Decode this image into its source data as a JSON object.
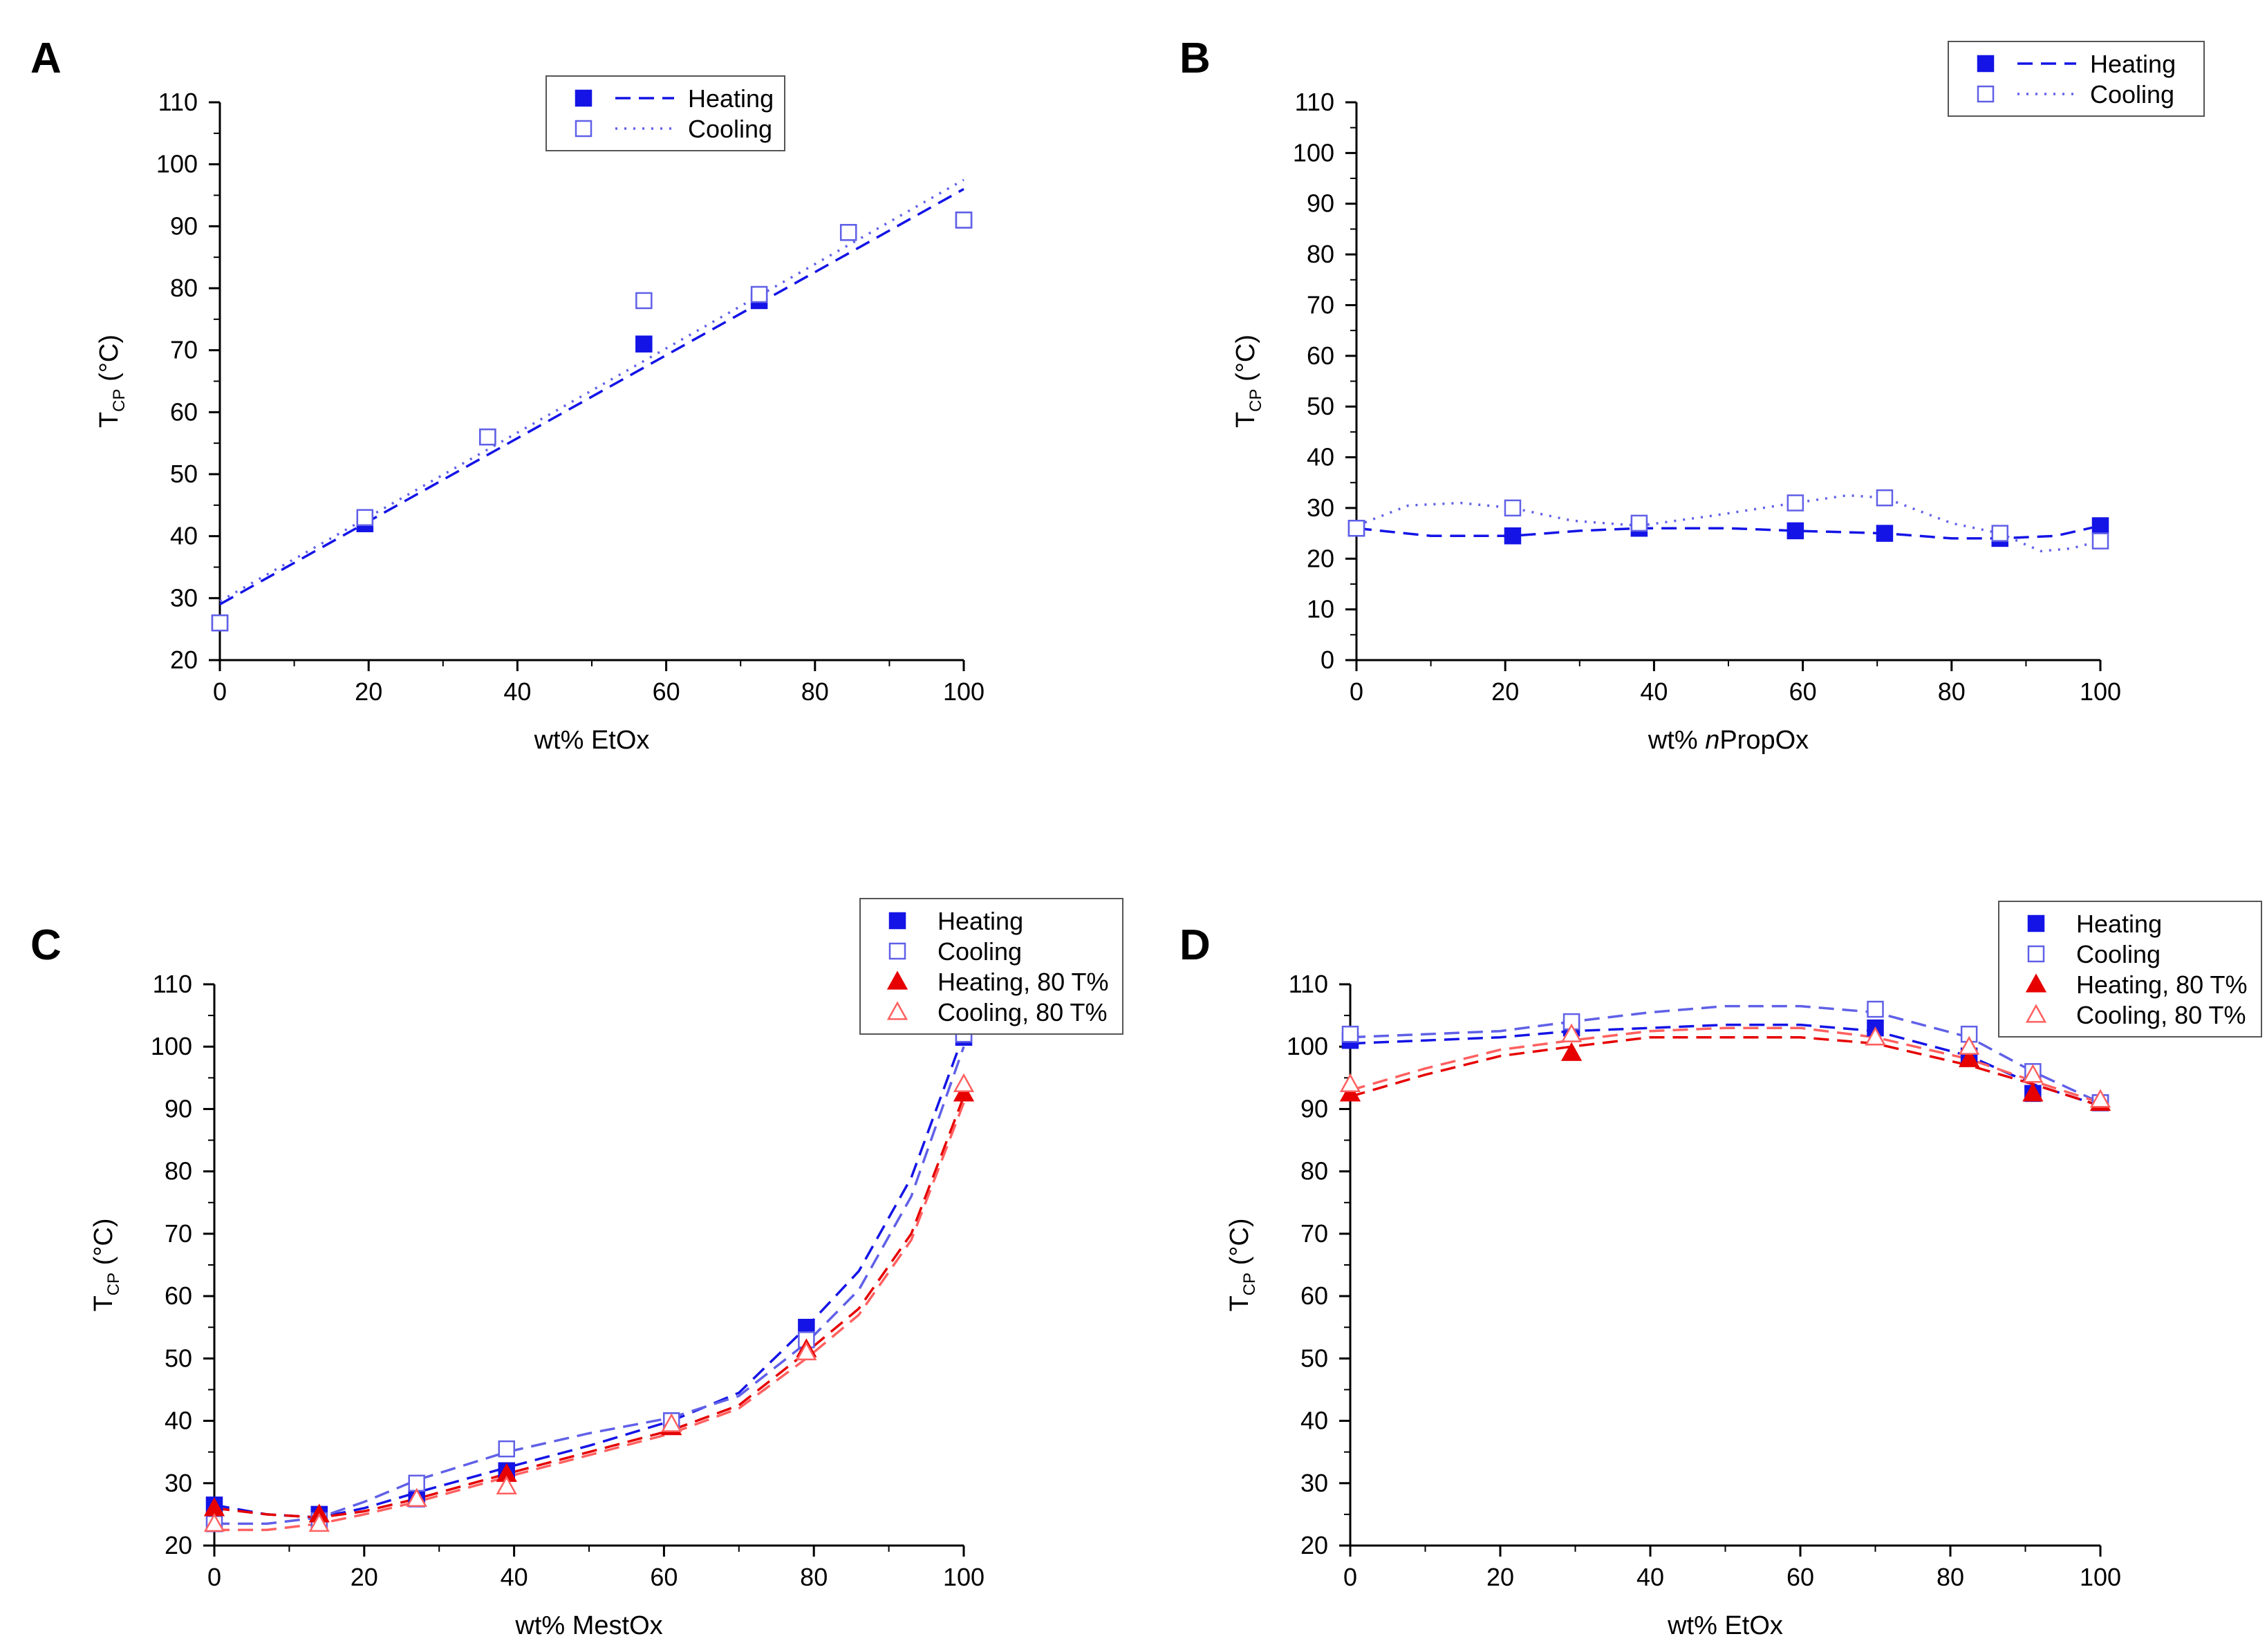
{
  "colors": {
    "heating": "#1414e6",
    "cooling": "#6060e8",
    "heating80": "#e60000",
    "cooling80": "#ff6060",
    "axis": "#000000"
  },
  "chart_data": [
    {
      "panel": "A",
      "type": "scatter",
      "xlabel_parts": [
        {
          "text": "wt% EtOx",
          "italic": false
        }
      ],
      "ylabel_main": "T",
      "ylabel_sub": "CP",
      "ylabel_unit": " (°C)",
      "xlim": [
        0,
        100
      ],
      "ylim": [
        20,
        110
      ],
      "xticks": [
        0,
        20,
        40,
        60,
        80,
        100
      ],
      "yticks": [
        20,
        30,
        40,
        50,
        60,
        70,
        80,
        90,
        100,
        110
      ],
      "legend_position": "top-center",
      "series": [
        {
          "name": "Heating",
          "color": "heating",
          "marker": "square-filled",
          "line": "dashed",
          "points": [
            [
              0,
              26
            ],
            [
              19.5,
              42
            ],
            [
              36,
              56
            ],
            [
              57,
              71
            ],
            [
              72.5,
              78
            ],
            [
              84.5,
              89
            ],
            [
              100,
              91
            ]
          ],
          "fit": [
            [
              0,
              29
            ],
            [
              100,
              96
            ]
          ]
        },
        {
          "name": "Cooling",
          "color": "cooling",
          "marker": "square-open",
          "line": "dotted",
          "points": [
            [
              0,
              26
            ],
            [
              19.5,
              43
            ],
            [
              36,
              56
            ],
            [
              57,
              78
            ],
            [
              72.5,
              79
            ],
            [
              84.5,
              89
            ],
            [
              100,
              91
            ]
          ],
          "fit": [
            [
              0,
              29.5
            ],
            [
              100,
              97.5
            ]
          ]
        }
      ]
    },
    {
      "panel": "B",
      "type": "scatter",
      "xlabel_parts": [
        {
          "text": "wt% ",
          "italic": false
        },
        {
          "text": "n",
          "italic": true
        },
        {
          "text": "PropOx",
          "italic": false
        }
      ],
      "ylabel_main": "T",
      "ylabel_sub": "CP",
      "ylabel_unit": " (°C)",
      "xlim": [
        0,
        100
      ],
      "ylim": [
        0,
        110
      ],
      "xticks": [
        0,
        20,
        40,
        60,
        80,
        100
      ],
      "yticks": [
        0,
        10,
        20,
        30,
        40,
        50,
        60,
        70,
        80,
        90,
        100,
        110
      ],
      "legend_position": "top-right",
      "series": [
        {
          "name": "Heating",
          "color": "heating",
          "marker": "square-filled",
          "line": "dashed",
          "points": [
            [
              0,
              26
            ],
            [
              21,
              24.5
            ],
            [
              38,
              26
            ],
            [
              59,
              25.5
            ],
            [
              71,
              25
            ],
            [
              86.5,
              24
            ],
            [
              100,
              26.5
            ]
          ],
          "fit": [
            [
              0,
              26
            ],
            [
              10,
              24.5
            ],
            [
              21,
              24.5
            ],
            [
              30,
              25.5
            ],
            [
              38,
              26
            ],
            [
              50,
              26
            ],
            [
              59,
              25.5
            ],
            [
              71,
              25
            ],
            [
              80,
              24
            ],
            [
              86.5,
              24
            ],
            [
              94,
              24.5
            ],
            [
              100,
              26.5
            ]
          ]
        },
        {
          "name": "Cooling",
          "color": "cooling",
          "marker": "square-open",
          "line": "dotted",
          "points": [
            [
              0,
              26
            ],
            [
              21,
              30
            ],
            [
              38,
              27
            ],
            [
              59,
              31
            ],
            [
              71,
              32
            ],
            [
              86.5,
              25
            ],
            [
              100,
              23.5
            ]
          ],
          "fit": [
            [
              0,
              26.5
            ],
            [
              7,
              30.5
            ],
            [
              14,
              31
            ],
            [
              21,
              30
            ],
            [
              29,
              27.5
            ],
            [
              38,
              26.5
            ],
            [
              48,
              28.5
            ],
            [
              59,
              31
            ],
            [
              66,
              32.5
            ],
            [
              71,
              32
            ],
            [
              80,
              27
            ],
            [
              86.5,
              25
            ],
            [
              92,
              21.5
            ],
            [
              96,
              22
            ],
            [
              100,
              23.5
            ]
          ]
        }
      ]
    },
    {
      "panel": "C",
      "type": "scatter",
      "xlabel_parts": [
        {
          "text": "wt% MestOx",
          "italic": false
        }
      ],
      "ylabel_main": "T",
      "ylabel_sub": "CP",
      "ylabel_unit": " (°C)",
      "xlim": [
        0,
        100
      ],
      "ylim": [
        20,
        110
      ],
      "xticks": [
        0,
        20,
        40,
        60,
        80,
        100
      ],
      "yticks": [
        20,
        30,
        40,
        50,
        60,
        70,
        80,
        90,
        100,
        110
      ],
      "legend_position": "top-right",
      "series": [
        {
          "name": "Heating",
          "color": "heating",
          "marker": "square-filled",
          "line": "dashed",
          "points": [
            [
              0,
              26.5
            ],
            [
              14,
              25
            ],
            [
              27,
              27.5
            ],
            [
              39,
              32
            ],
            [
              61,
              40
            ],
            [
              79,
              55
            ],
            [
              100,
              101.5
            ]
          ],
          "fit": [
            [
              0,
              26.5
            ],
            [
              7,
              25
            ],
            [
              14,
              24.5
            ],
            [
              20,
              26
            ],
            [
              27,
              28.5
            ],
            [
              39,
              32.5
            ],
            [
              50,
              36
            ],
            [
              61,
              40
            ],
            [
              70,
              44.5
            ],
            [
              79,
              55
            ],
            [
              86,
              64
            ],
            [
              93,
              79
            ],
            [
              100,
              102
            ]
          ]
        },
        {
          "name": "Cooling",
          "color": "cooling",
          "marker": "square-open",
          "line": "dashed",
          "points": [
            [
              0,
              23.5
            ],
            [
              14,
              24
            ],
            [
              27,
              30
            ],
            [
              39,
              35.5
            ],
            [
              61,
              40
            ],
            [
              79,
              53
            ],
            [
              100,
              102
            ]
          ],
          "fit": [
            [
              0,
              23.5
            ],
            [
              7,
              23.5
            ],
            [
              14,
              24.5
            ],
            [
              20,
              27
            ],
            [
              27,
              30.5
            ],
            [
              39,
              35
            ],
            [
              50,
              38
            ],
            [
              61,
              40.5
            ],
            [
              70,
              44
            ],
            [
              79,
              52.5
            ],
            [
              86,
              61
            ],
            [
              93,
              76
            ],
            [
              100,
              100
            ]
          ]
        },
        {
          "name": "Heating, 80 T%",
          "color": "heating80",
          "marker": "triangle-filled",
          "line": "dashed",
          "points": [
            [
              0,
              26
            ],
            [
              14,
              25
            ],
            [
              27,
              27.5
            ],
            [
              39,
              31.5
            ],
            [
              61,
              39
            ],
            [
              79,
              51.5
            ],
            [
              100,
              92.5
            ]
          ],
          "fit": [
            [
              0,
              26
            ],
            [
              7,
              25
            ],
            [
              14,
              24.5
            ],
            [
              20,
              25.5
            ],
            [
              27,
              27.5
            ],
            [
              39,
              31.5
            ],
            [
              50,
              35
            ],
            [
              61,
              38.5
            ],
            [
              70,
              42.5
            ],
            [
              79,
              51
            ],
            [
              86,
              58
            ],
            [
              93,
              70
            ],
            [
              100,
              92
            ]
          ]
        },
        {
          "name": "Cooling, 80 T%",
          "color": "cooling80",
          "marker": "triangle-open",
          "line": "dashed",
          "points": [
            [
              0,
              23.5
            ],
            [
              14,
              23.5
            ],
            [
              27,
              27.5
            ],
            [
              39,
              29.5
            ],
            [
              61,
              39.5
            ],
            [
              79,
              51
            ],
            [
              100,
              94
            ]
          ],
          "fit": [
            [
              0,
              22.5
            ],
            [
              7,
              22.5
            ],
            [
              14,
              23.5
            ],
            [
              20,
              25
            ],
            [
              27,
              27
            ],
            [
              39,
              31
            ],
            [
              50,
              34.5
            ],
            [
              61,
              38
            ],
            [
              70,
              42
            ],
            [
              79,
              50
            ],
            [
              86,
              57
            ],
            [
              93,
              69
            ],
            [
              100,
              91
            ]
          ]
        }
      ]
    },
    {
      "panel": "D",
      "type": "scatter",
      "xlabel_parts": [
        {
          "text": "wt% EtOx",
          "italic": false
        }
      ],
      "ylabel_main": "T",
      "ylabel_sub": "CP",
      "ylabel_unit": " (°C)",
      "xlim": [
        0,
        100
      ],
      "ylim": [
        20,
        110
      ],
      "xticks": [
        0,
        20,
        40,
        60,
        80,
        100
      ],
      "yticks": [
        20,
        30,
        40,
        50,
        60,
        70,
        80,
        90,
        100,
        110
      ],
      "legend_position": "top-right",
      "series": [
        {
          "name": "Heating",
          "color": "heating",
          "marker": "square-filled",
          "line": "dashed",
          "points": [
            [
              0,
              101
            ],
            [
              29.5,
              103
            ],
            [
              70,
              103
            ],
            [
              82.5,
              98.5
            ],
            [
              91,
              92.5
            ],
            [
              100,
              91
            ]
          ],
          "fit": [
            [
              0,
              100.5
            ],
            [
              10,
              101
            ],
            [
              20,
              101.5
            ],
            [
              29.5,
              102.5
            ],
            [
              40,
              103
            ],
            [
              50,
              103.5
            ],
            [
              60,
              103.5
            ],
            [
              70,
              102.5
            ],
            [
              82.5,
              98.5
            ],
            [
              91,
              94
            ],
            [
              100,
              90.5
            ]
          ]
        },
        {
          "name": "Cooling",
          "color": "cooling",
          "marker": "square-open",
          "line": "dashed",
          "points": [
            [
              0,
              102
            ],
            [
              29.5,
              104
            ],
            [
              70,
              106
            ],
            [
              82.5,
              102
            ],
            [
              91,
              96
            ],
            [
              100,
              91
            ]
          ],
          "fit": [
            [
              0,
              101.5
            ],
            [
              10,
              102
            ],
            [
              20,
              102.5
            ],
            [
              29.5,
              104
            ],
            [
              40,
              105.5
            ],
            [
              50,
              106.5
            ],
            [
              60,
              106.5
            ],
            [
              70,
              105.5
            ],
            [
              82.5,
              101.5
            ],
            [
              91,
              96
            ],
            [
              100,
              91
            ]
          ]
        },
        {
          "name": "Heating, 80 T%",
          "color": "heating80",
          "marker": "triangle-filled",
          "line": "dashed",
          "points": [
            [
              0,
              92.5
            ],
            [
              29.5,
              99
            ],
            [
              70,
              101.5
            ],
            [
              82.5,
              98
            ],
            [
              91,
              92.5
            ],
            [
              100,
              91
            ]
          ],
          "fit": [
            [
              0,
              92
            ],
            [
              10,
              95.5
            ],
            [
              20,
              98.5
            ],
            [
              29.5,
              100
            ],
            [
              40,
              101.5
            ],
            [
              50,
              101.5
            ],
            [
              60,
              101.5
            ],
            [
              70,
              100.5
            ],
            [
              82.5,
              97
            ],
            [
              91,
              94
            ],
            [
              100,
              90.5
            ]
          ]
        },
        {
          "name": "Cooling, 80 T%",
          "color": "cooling80",
          "marker": "triangle-open",
          "line": "dashed",
          "points": [
            [
              0,
              94
            ],
            [
              29.5,
              102
            ],
            [
              70,
              101.5
            ],
            [
              82.5,
              100
            ],
            [
              91,
              95.5
            ],
            [
              100,
              91.5
            ]
          ],
          "fit": [
            [
              0,
              93
            ],
            [
              10,
              96.5
            ],
            [
              20,
              99.5
            ],
            [
              29.5,
              101
            ],
            [
              40,
              102.5
            ],
            [
              50,
              103
            ],
            [
              60,
              103
            ],
            [
              70,
              101.5
            ],
            [
              82.5,
              98
            ],
            [
              91,
              94.5
            ],
            [
              100,
              91
            ]
          ]
        }
      ]
    }
  ]
}
